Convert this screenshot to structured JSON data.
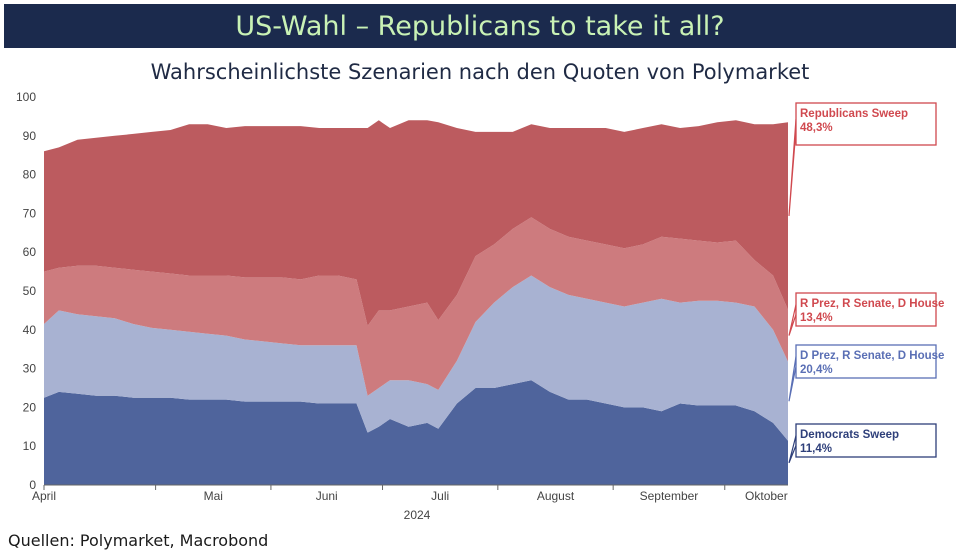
{
  "header": {
    "title": "US-Wahl – Republicans to take it all?",
    "subtitle": "Wahrscheinlichste Szenarien nach den Quoten von Polymarket"
  },
  "footer": {
    "source": "Quellen: Polymarket, Macrobond"
  },
  "chart_data": {
    "type": "area",
    "stacked": true,
    "title": "Wahrscheinlichste Szenarien nach den Quoten von Polymarket",
    "xlabel": "2024",
    "ylim": [
      0,
      100
    ],
    "y_ticks": [
      0,
      10,
      20,
      30,
      40,
      50,
      60,
      70,
      80,
      90,
      100
    ],
    "x_ticks": [
      "April",
      "Mai",
      "Juni",
      "Juli",
      "August",
      "September",
      "Oktober"
    ],
    "x": [
      "2024-04-01",
      "2024-04-05",
      "2024-04-10",
      "2024-04-15",
      "2024-04-20",
      "2024-04-25",
      "2024-04-30",
      "2024-05-05",
      "2024-05-10",
      "2024-05-15",
      "2024-05-20",
      "2024-05-25",
      "2024-05-30",
      "2024-06-04",
      "2024-06-09",
      "2024-06-14",
      "2024-06-19",
      "2024-06-24",
      "2024-06-27",
      "2024-06-30",
      "2024-07-03",
      "2024-07-08",
      "2024-07-13",
      "2024-07-16",
      "2024-07-21",
      "2024-07-26",
      "2024-07-31",
      "2024-08-05",
      "2024-08-10",
      "2024-08-15",
      "2024-08-20",
      "2024-08-25",
      "2024-08-30",
      "2024-09-04",
      "2024-09-09",
      "2024-09-14",
      "2024-09-19",
      "2024-09-24",
      "2024-09-29",
      "2024-10-04",
      "2024-10-09",
      "2024-10-14",
      "2024-10-18"
    ],
    "series": [
      {
        "name": "Democrats Sweep",
        "color": "#4f649c",
        "values": [
          22.5,
          24,
          23.5,
          23,
          23,
          22.5,
          22.5,
          22.5,
          22,
          22,
          22,
          21.5,
          21.5,
          21.5,
          21.5,
          21,
          21,
          21,
          13.5,
          15,
          17,
          15,
          16,
          14.5,
          21,
          25,
          25,
          26,
          27,
          24,
          22,
          22,
          21,
          20,
          20,
          19,
          21,
          20.5,
          20.5,
          20.5,
          19,
          16,
          11.4
        ]
      },
      {
        "name": "D Prez, R Senate, D House",
        "color": "#a8b2d2",
        "values": [
          19,
          21,
          20.5,
          20.5,
          20,
          19,
          18,
          17.5,
          17.5,
          17,
          16.5,
          16,
          15.5,
          15,
          14.5,
          15,
          15,
          15,
          9.5,
          10,
          10,
          12,
          10,
          10,
          11,
          17,
          22,
          25,
          27,
          27,
          27,
          26,
          26,
          26,
          27,
          29,
          26,
          27,
          27,
          26.5,
          27,
          24,
          20.4
        ]
      },
      {
        "name": "R Prez, R Senate, D House",
        "color": "#cd7b7e",
        "values": [
          13.5,
          11,
          12.5,
          13,
          13,
          14,
          14.5,
          14.5,
          14.5,
          15,
          15.5,
          16,
          16.5,
          17,
          17,
          18,
          18,
          17,
          18,
          20,
          18,
          19,
          21,
          18,
          17,
          17,
          15,
          15,
          15,
          15,
          15,
          15,
          15,
          15,
          15,
          16,
          16.5,
          15.5,
          15,
          16,
          12,
          14,
          13.4
        ]
      },
      {
        "name": "Republicans Sweep",
        "color": "#bc5b5f",
        "values": [
          31,
          31,
          32.5,
          33,
          34,
          35,
          36,
          37,
          39,
          39,
          38,
          39,
          39,
          39,
          39.5,
          38,
          38,
          39,
          51,
          49,
          47,
          48,
          47,
          51,
          43,
          32,
          29,
          25,
          24,
          26,
          28,
          29,
          30,
          30,
          30,
          29,
          28.5,
          29.5,
          31,
          31,
          35,
          39,
          48.3
        ]
      }
    ],
    "end_labels": [
      {
        "name": "Republicans Sweep",
        "value": "48,3%",
        "color": "#d0494f"
      },
      {
        "name": "R Prez, R Senate, D House",
        "value": "13,4%",
        "color": "#d0494f"
      },
      {
        "name": "D Prez, R Senate, D House",
        "value": "20,4%",
        "color": "#5a6fb5"
      },
      {
        "name": "Democrats Sweep",
        "value": "11,4%",
        "color": "#2e3f7a"
      }
    ]
  }
}
